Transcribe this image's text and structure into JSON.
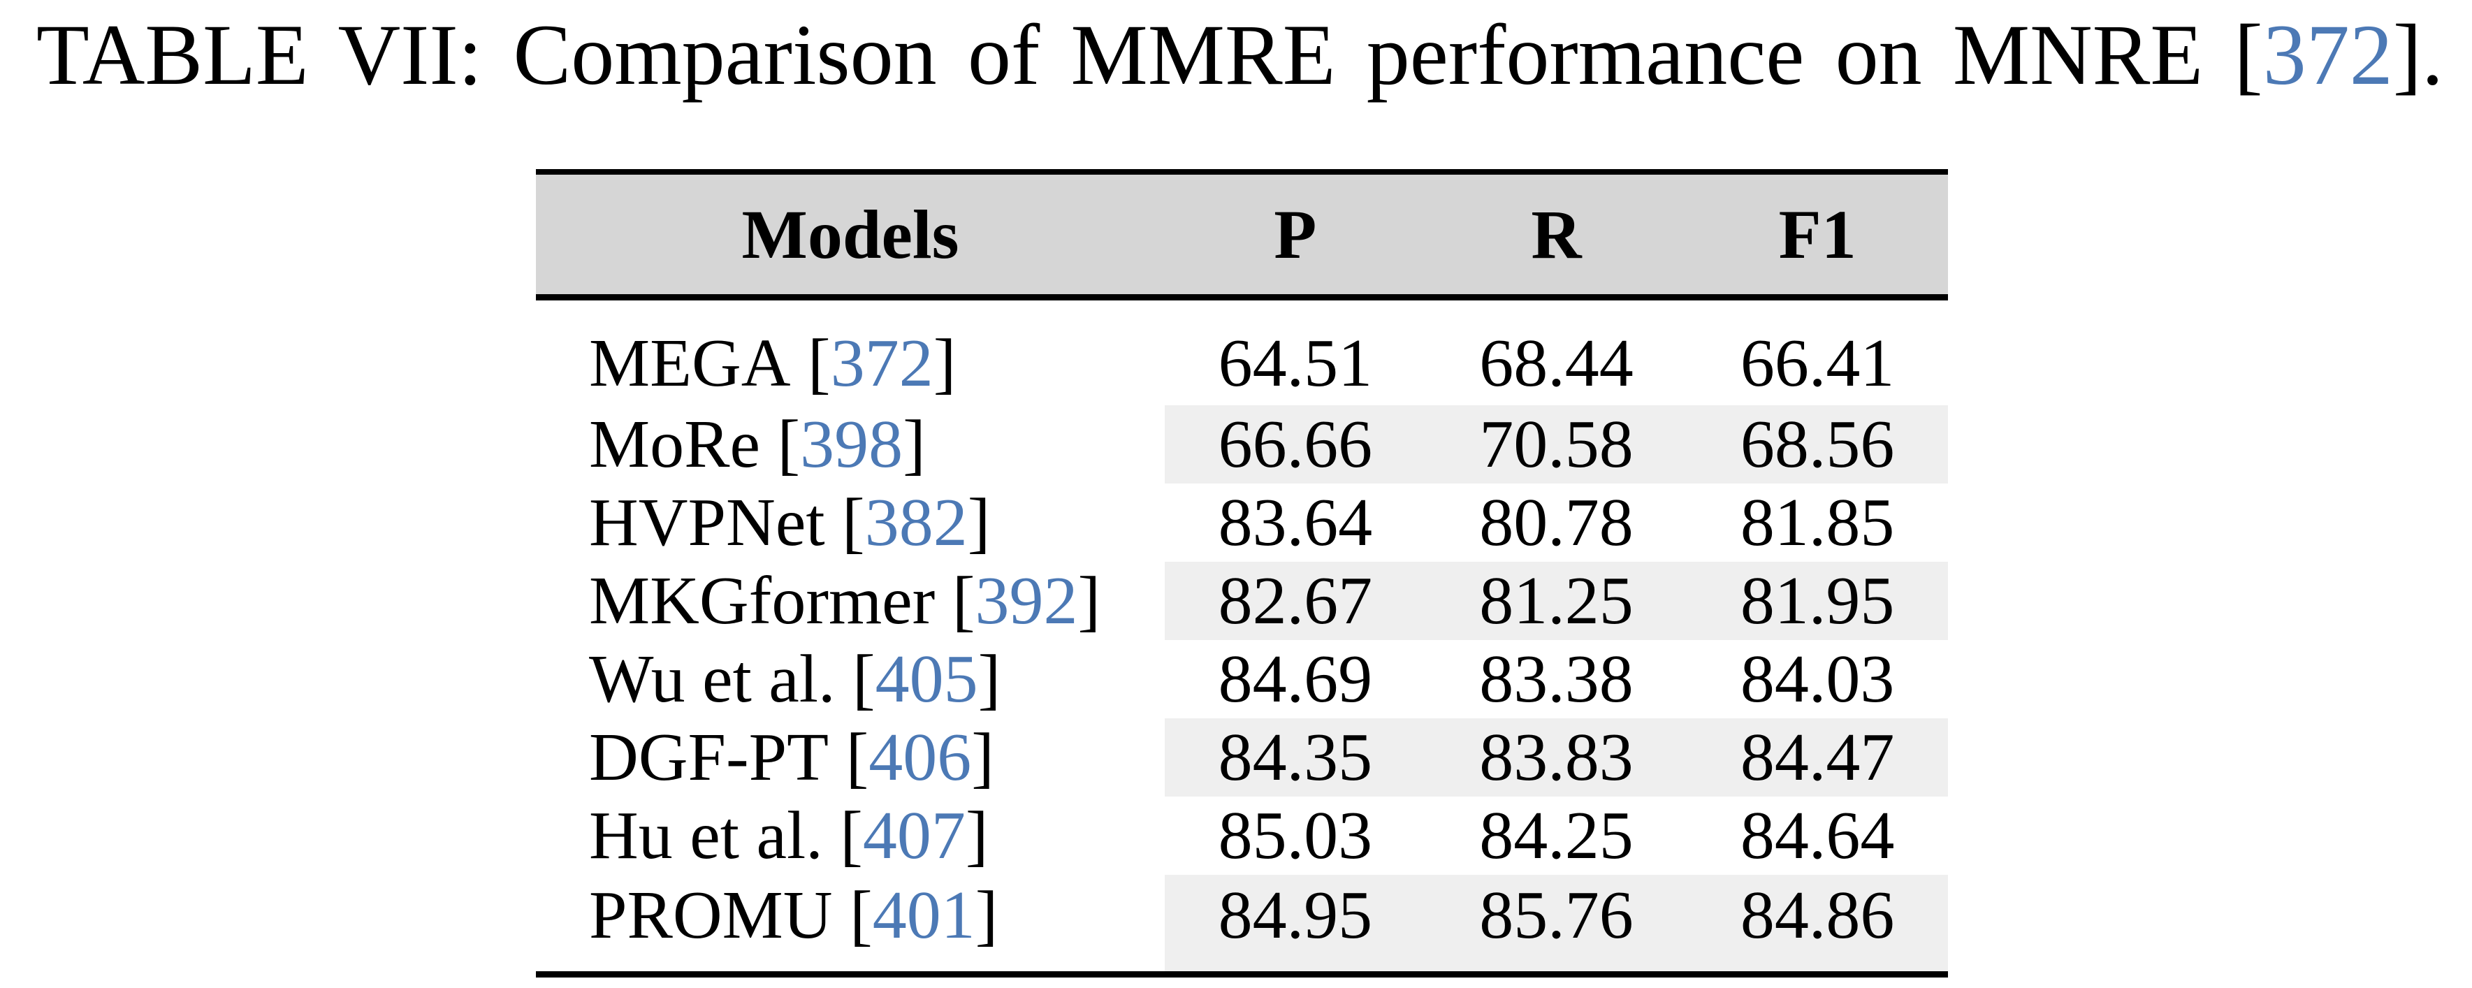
{
  "caption": {
    "before": "TABLE VII: Comparison of MMRE performance on MNRE",
    "open_bracket": " [",
    "cite": "372",
    "close_bracket": "]",
    "period": "."
  },
  "colors": {
    "citation_blue": "#4c79b5",
    "header_bg": "#d6d6d6",
    "stripe_bg": "#efefef",
    "rule_black": "#000000",
    "text_black": "#000000",
    "page_bg": "#ffffff"
  },
  "table": {
    "headers": {
      "models": "Models",
      "p": "P",
      "r": "R",
      "f1": "F1"
    },
    "rows": [
      {
        "model": "MEGA",
        "cite": "372",
        "p": "64.51",
        "r": "68.44",
        "f1": "66.41",
        "striped": false
      },
      {
        "model": "MoRe",
        "cite": "398",
        "p": "66.66",
        "r": "70.58",
        "f1": "68.56",
        "striped": true
      },
      {
        "model": "HVPNet",
        "cite": "382",
        "p": "83.64",
        "r": "80.78",
        "f1": "81.85",
        "striped": false
      },
      {
        "model": "MKGformer",
        "cite": "392",
        "p": "82.67",
        "r": "81.25",
        "f1": "81.95",
        "striped": true
      },
      {
        "model": "Wu et al.",
        "cite": "405",
        "p": "84.69",
        "r": "83.38",
        "f1": "84.03",
        "striped": false
      },
      {
        "model": "DGF-PT",
        "cite": "406",
        "p": "84.35",
        "r": "83.83",
        "f1": "84.47",
        "striped": true
      },
      {
        "model": "Hu et al.",
        "cite": "407",
        "p": "85.03",
        "r": "84.25",
        "f1": "84.64",
        "striped": false
      },
      {
        "model": "PROMU",
        "cite": "401",
        "p": "84.95",
        "r": "85.76",
        "f1": "84.86",
        "striped": true
      }
    ]
  },
  "chart_data": {
    "type": "table",
    "title": "TABLE VII: Comparison of MMRE performance on MNRE [372].",
    "columns": [
      "Models",
      "P",
      "R",
      "F1"
    ],
    "rows": [
      [
        "MEGA [372]",
        64.51,
        68.44,
        66.41
      ],
      [
        "MoRe [398]",
        66.66,
        70.58,
        68.56
      ],
      [
        "HVPNet [382]",
        83.64,
        80.78,
        81.85
      ],
      [
        "MKGformer [392]",
        82.67,
        81.25,
        81.95
      ],
      [
        "Wu et al. [405]",
        84.69,
        83.38,
        84.03
      ],
      [
        "DGF-PT [406]",
        84.35,
        83.83,
        84.47
      ],
      [
        "Hu et al. [407]",
        85.03,
        84.25,
        84.64
      ],
      [
        "PROMU [401]",
        84.95,
        85.76,
        84.86
      ]
    ]
  }
}
